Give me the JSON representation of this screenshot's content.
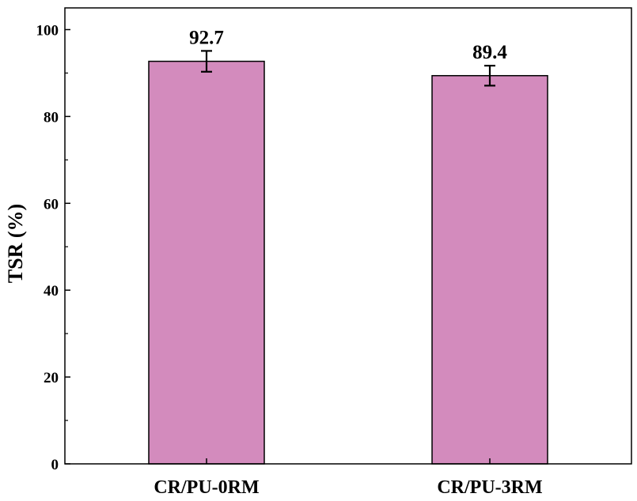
{
  "chart_data": {
    "type": "bar",
    "categories": [
      "CR/PU-0RM",
      "CR/PU-3RM"
    ],
    "values": [
      92.7,
      89.4
    ],
    "error": [
      2.4,
      2.3
    ],
    "data_labels": [
      "92.7",
      "89.4"
    ],
    "ylabel": "TSR (%)",
    "xlabel": "",
    "ylim": [
      0,
      105
    ],
    "yticks": [
      0,
      20,
      40,
      60,
      80,
      100
    ],
    "bar_color": "#d38bbd",
    "bar_edge_color": "#000000",
    "grid": false
  }
}
